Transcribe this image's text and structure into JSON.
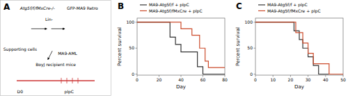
{
  "chart_data": [
    {
      "type": "diagram",
      "title": "A",
      "annotations": [
        "Atg5f/f/fMxCre-/-",
        "GFP-MA9 Retro",
        "Lin-",
        "Supporting cells",
        "MA9-AML",
        "BoyJ recipient mice",
        "D0",
        "pIpC"
      ]
    },
    {
      "type": "step",
      "title": "B",
      "xlabel": "Day",
      "ylabel": "Percent survival",
      "xlim": [
        0,
        80
      ],
      "ylim": [
        -2,
        108
      ],
      "xticks": [
        0,
        20,
        40,
        60,
        80
      ],
      "yticks": [
        0,
        50,
        100
      ],
      "series": [
        {
          "name": "MA9-Atg5f/f + pIpC",
          "color": "#333333",
          "x": [
            0,
            30,
            30,
            35,
            35,
            40,
            40,
            55,
            55,
            60,
            60,
            63,
            63,
            80
          ],
          "values": [
            100,
            100,
            71.4,
            71.4,
            57.1,
            57.1,
            42.9,
            42.9,
            14.3,
            14.3,
            0,
            0,
            0,
            0
          ]
        },
        {
          "name": "MA9-Atg5f/fMxCre + pIpC",
          "color": "#cc4c2c",
          "x": [
            0,
            40,
            40,
            50,
            50,
            57,
            57,
            62,
            62,
            65,
            65,
            80
          ],
          "values": [
            100,
            100,
            87.5,
            87.5,
            75,
            75,
            50,
            50,
            25,
            25,
            12.5,
            12.5
          ]
        }
      ]
    },
    {
      "type": "step",
      "title": "C",
      "xlabel": "Day",
      "ylabel": "Percent survival",
      "xlim": [
        0,
        50
      ],
      "ylim": [
        -2,
        108
      ],
      "xticks": [
        0,
        10,
        20,
        30,
        40,
        50
      ],
      "yticks": [
        0,
        50,
        100
      ],
      "series": [
        {
          "name": "MA9-Atg5f/f + pIpC",
          "color": "#333333",
          "x": [
            0,
            22,
            22,
            25,
            25,
            27,
            27,
            30,
            30,
            33,
            33,
            36,
            36,
            50
          ],
          "values": [
            100,
            100,
            83.3,
            83.3,
            66.7,
            66.7,
            50,
            50,
            33.3,
            33.3,
            16.7,
            16.7,
            0,
            0
          ]
        },
        {
          "name": "MA9-Atg5f/fMxCre + pIpC",
          "color": "#cc4c2c",
          "x": [
            0,
            23,
            23,
            27,
            27,
            30,
            30,
            33,
            33,
            42,
            42,
            50
          ],
          "values": [
            100,
            100,
            80,
            80,
            60,
            60,
            40,
            40,
            20,
            20,
            0,
            0
          ]
        }
      ]
    }
  ]
}
